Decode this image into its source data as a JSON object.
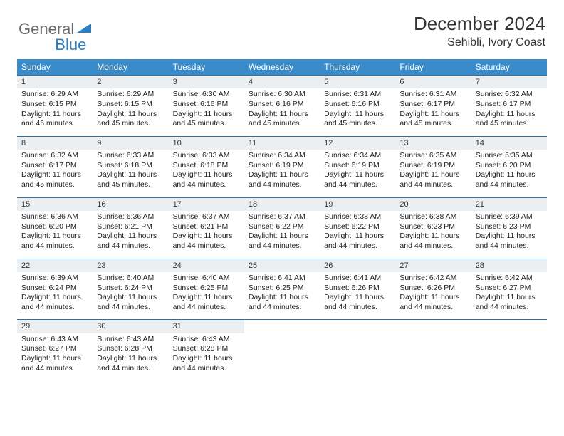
{
  "logo": {
    "general": "General",
    "blue": "Blue"
  },
  "title": "December 2024",
  "location": "Sehibli, Ivory Coast",
  "colors": {
    "header_bg": "#3a8bc9",
    "header_text": "#ffffff",
    "daynum_bg": "#eceff1",
    "row_divider": "#2d6fa3",
    "logo_gray": "#6b6b6b",
    "logo_blue": "#2d7fc1"
  },
  "day_headers": [
    "Sunday",
    "Monday",
    "Tuesday",
    "Wednesday",
    "Thursday",
    "Friday",
    "Saturday"
  ],
  "weeks": [
    {
      "nums": [
        "1",
        "2",
        "3",
        "4",
        "5",
        "6",
        "7"
      ],
      "cells": [
        {
          "sunrise": "Sunrise: 6:29 AM",
          "sunset": "Sunset: 6:15 PM",
          "day1": "Daylight: 11 hours",
          "day2": "and 46 minutes."
        },
        {
          "sunrise": "Sunrise: 6:29 AM",
          "sunset": "Sunset: 6:15 PM",
          "day1": "Daylight: 11 hours",
          "day2": "and 45 minutes."
        },
        {
          "sunrise": "Sunrise: 6:30 AM",
          "sunset": "Sunset: 6:16 PM",
          "day1": "Daylight: 11 hours",
          "day2": "and 45 minutes."
        },
        {
          "sunrise": "Sunrise: 6:30 AM",
          "sunset": "Sunset: 6:16 PM",
          "day1": "Daylight: 11 hours",
          "day2": "and 45 minutes."
        },
        {
          "sunrise": "Sunrise: 6:31 AM",
          "sunset": "Sunset: 6:16 PM",
          "day1": "Daylight: 11 hours",
          "day2": "and 45 minutes."
        },
        {
          "sunrise": "Sunrise: 6:31 AM",
          "sunset": "Sunset: 6:17 PM",
          "day1": "Daylight: 11 hours",
          "day2": "and 45 minutes."
        },
        {
          "sunrise": "Sunrise: 6:32 AM",
          "sunset": "Sunset: 6:17 PM",
          "day1": "Daylight: 11 hours",
          "day2": "and 45 minutes."
        }
      ]
    },
    {
      "nums": [
        "8",
        "9",
        "10",
        "11",
        "12",
        "13",
        "14"
      ],
      "cells": [
        {
          "sunrise": "Sunrise: 6:32 AM",
          "sunset": "Sunset: 6:17 PM",
          "day1": "Daylight: 11 hours",
          "day2": "and 45 minutes."
        },
        {
          "sunrise": "Sunrise: 6:33 AM",
          "sunset": "Sunset: 6:18 PM",
          "day1": "Daylight: 11 hours",
          "day2": "and 45 minutes."
        },
        {
          "sunrise": "Sunrise: 6:33 AM",
          "sunset": "Sunset: 6:18 PM",
          "day1": "Daylight: 11 hours",
          "day2": "and 44 minutes."
        },
        {
          "sunrise": "Sunrise: 6:34 AM",
          "sunset": "Sunset: 6:19 PM",
          "day1": "Daylight: 11 hours",
          "day2": "and 44 minutes."
        },
        {
          "sunrise": "Sunrise: 6:34 AM",
          "sunset": "Sunset: 6:19 PM",
          "day1": "Daylight: 11 hours",
          "day2": "and 44 minutes."
        },
        {
          "sunrise": "Sunrise: 6:35 AM",
          "sunset": "Sunset: 6:19 PM",
          "day1": "Daylight: 11 hours",
          "day2": "and 44 minutes."
        },
        {
          "sunrise": "Sunrise: 6:35 AM",
          "sunset": "Sunset: 6:20 PM",
          "day1": "Daylight: 11 hours",
          "day2": "and 44 minutes."
        }
      ]
    },
    {
      "nums": [
        "15",
        "16",
        "17",
        "18",
        "19",
        "20",
        "21"
      ],
      "cells": [
        {
          "sunrise": "Sunrise: 6:36 AM",
          "sunset": "Sunset: 6:20 PM",
          "day1": "Daylight: 11 hours",
          "day2": "and 44 minutes."
        },
        {
          "sunrise": "Sunrise: 6:36 AM",
          "sunset": "Sunset: 6:21 PM",
          "day1": "Daylight: 11 hours",
          "day2": "and 44 minutes."
        },
        {
          "sunrise": "Sunrise: 6:37 AM",
          "sunset": "Sunset: 6:21 PM",
          "day1": "Daylight: 11 hours",
          "day2": "and 44 minutes."
        },
        {
          "sunrise": "Sunrise: 6:37 AM",
          "sunset": "Sunset: 6:22 PM",
          "day1": "Daylight: 11 hours",
          "day2": "and 44 minutes."
        },
        {
          "sunrise": "Sunrise: 6:38 AM",
          "sunset": "Sunset: 6:22 PM",
          "day1": "Daylight: 11 hours",
          "day2": "and 44 minutes."
        },
        {
          "sunrise": "Sunrise: 6:38 AM",
          "sunset": "Sunset: 6:23 PM",
          "day1": "Daylight: 11 hours",
          "day2": "and 44 minutes."
        },
        {
          "sunrise": "Sunrise: 6:39 AM",
          "sunset": "Sunset: 6:23 PM",
          "day1": "Daylight: 11 hours",
          "day2": "and 44 minutes."
        }
      ]
    },
    {
      "nums": [
        "22",
        "23",
        "24",
        "25",
        "26",
        "27",
        "28"
      ],
      "cells": [
        {
          "sunrise": "Sunrise: 6:39 AM",
          "sunset": "Sunset: 6:24 PM",
          "day1": "Daylight: 11 hours",
          "day2": "and 44 minutes."
        },
        {
          "sunrise": "Sunrise: 6:40 AM",
          "sunset": "Sunset: 6:24 PM",
          "day1": "Daylight: 11 hours",
          "day2": "and 44 minutes."
        },
        {
          "sunrise": "Sunrise: 6:40 AM",
          "sunset": "Sunset: 6:25 PM",
          "day1": "Daylight: 11 hours",
          "day2": "and 44 minutes."
        },
        {
          "sunrise": "Sunrise: 6:41 AM",
          "sunset": "Sunset: 6:25 PM",
          "day1": "Daylight: 11 hours",
          "day2": "and 44 minutes."
        },
        {
          "sunrise": "Sunrise: 6:41 AM",
          "sunset": "Sunset: 6:26 PM",
          "day1": "Daylight: 11 hours",
          "day2": "and 44 minutes."
        },
        {
          "sunrise": "Sunrise: 6:42 AM",
          "sunset": "Sunset: 6:26 PM",
          "day1": "Daylight: 11 hours",
          "day2": "and 44 minutes."
        },
        {
          "sunrise": "Sunrise: 6:42 AM",
          "sunset": "Sunset: 6:27 PM",
          "day1": "Daylight: 11 hours",
          "day2": "and 44 minutes."
        }
      ]
    },
    {
      "nums": [
        "29",
        "30",
        "31",
        "",
        "",
        "",
        ""
      ],
      "cells": [
        {
          "sunrise": "Sunrise: 6:43 AM",
          "sunset": "Sunset: 6:27 PM",
          "day1": "Daylight: 11 hours",
          "day2": "and 44 minutes."
        },
        {
          "sunrise": "Sunrise: 6:43 AM",
          "sunset": "Sunset: 6:28 PM",
          "day1": "Daylight: 11 hours",
          "day2": "and 44 minutes."
        },
        {
          "sunrise": "Sunrise: 6:43 AM",
          "sunset": "Sunset: 6:28 PM",
          "day1": "Daylight: 11 hours",
          "day2": "and 44 minutes."
        },
        null,
        null,
        null,
        null
      ]
    }
  ]
}
